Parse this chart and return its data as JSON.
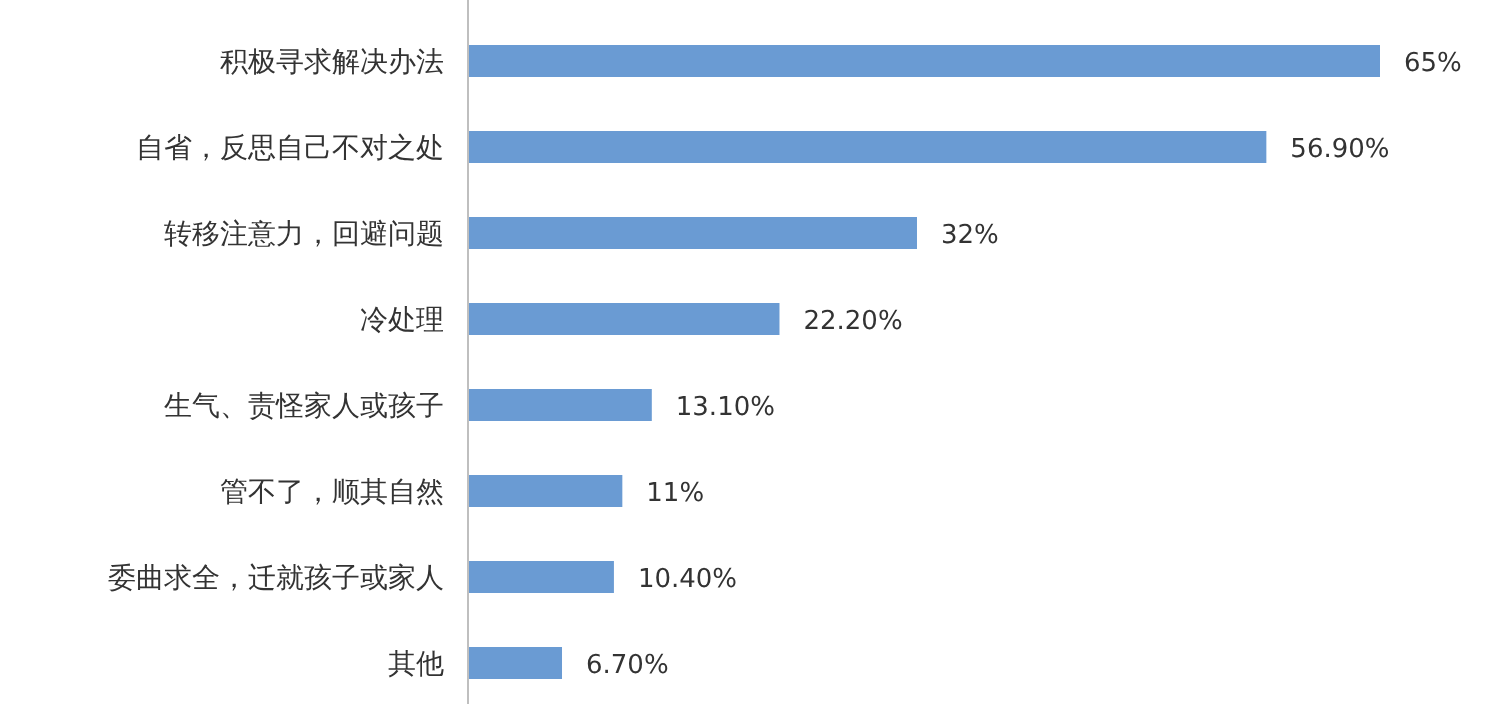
{
  "chart_data": {
    "type": "bar",
    "orientation": "horizontal",
    "color": "#6a9bd3",
    "categories": [
      "积极寻求解决办法",
      "自省，反思自己不对之处",
      "转移注意力，回避问题",
      "冷处理",
      "生气、责怪家人或孩子",
      "管不了，顺其自然",
      "委曲求全，迁就孩子或家人",
      "其他"
    ],
    "values": [
      65,
      56.9,
      32,
      22.2,
      13.1,
      11,
      10.4,
      6.7
    ],
    "value_labels": [
      "65%",
      "56.90%",
      "32%",
      "22.20%",
      "13.10%",
      "11%",
      "10.40%",
      "6.70%"
    ]
  }
}
